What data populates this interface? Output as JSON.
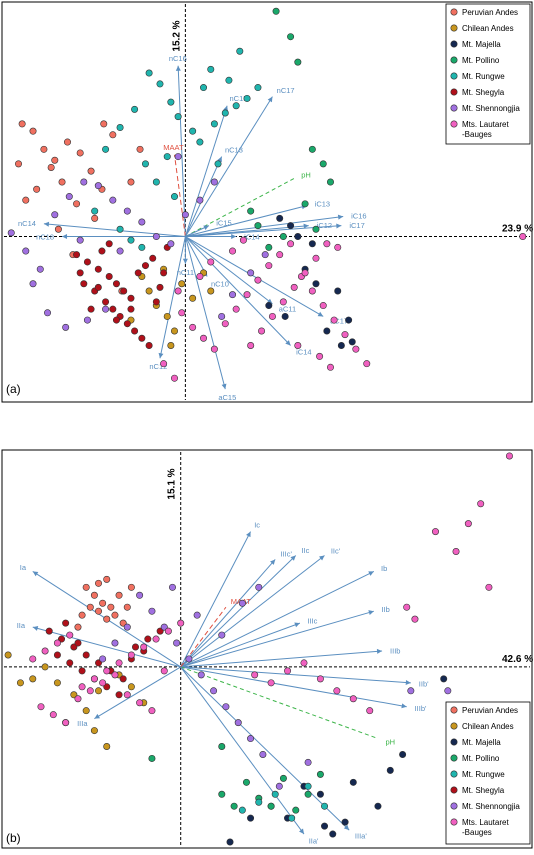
{
  "legend": [
    {
      "name": "Peruvian Andes",
      "color": "#f07060"
    },
    {
      "name": "Chilean Andes",
      "color": "#c8961e"
    },
    {
      "name": "Mt. Majella",
      "color": "#152850"
    },
    {
      "name": "Mt. Pollino",
      "color": "#1aa86a"
    },
    {
      "name": "Mt. Rungwe",
      "color": "#20b5ae"
    },
    {
      "name": "Mt. Shegyla",
      "color": "#b0101a"
    },
    {
      "name": "Mt. Shennongjia",
      "color": "#a070e0"
    },
    {
      "name": "Mts. Lautaret -Bauges",
      "color": "#f060c0"
    }
  ],
  "colors": {
    "arrow": "#5b8fc0",
    "maat": "#e05040",
    "ph": "#3db54a",
    "axis": "#000000"
  },
  "chart_data": [
    {
      "type": "scatter",
      "panel_label": "(a)",
      "x_axis_label": "23.9 %",
      "y_axis_label": "15.2 %",
      "xlim": [
        -100,
        190
      ],
      "ylim": [
        -90,
        128
      ],
      "vectors": [
        {
          "label": "nC16",
          "x": -4,
          "y": 94,
          "style": "arrow"
        },
        {
          "label": "MAAT",
          "x": -6,
          "y": 45,
          "style": "dashed-red"
        },
        {
          "label": "nC15",
          "x": 23,
          "y": 72,
          "style": "arrow"
        },
        {
          "label": "nC17",
          "x": 48,
          "y": 77,
          "style": "arrow"
        },
        {
          "label": "nC13",
          "x": 20,
          "y": 44,
          "style": "arrow"
        },
        {
          "label": "pH",
          "x": 60,
          "y": 32,
          "style": "dashed-green"
        },
        {
          "label": "iC13",
          "x": 67,
          "y": 17,
          "style": "arrow"
        },
        {
          "label": "iC16",
          "x": 87,
          "y": 11,
          "style": "arrow"
        },
        {
          "label": "iC17",
          "x": 86,
          "y": 6,
          "style": "arrow"
        },
        {
          "label": "iC12",
          "x": 68,
          "y": 6,
          "style": "arrow"
        },
        {
          "label": "iC15",
          "x": 13,
          "y": 6,
          "style": "arrow"
        },
        {
          "label": "iC14",
          "x": 28,
          "y": 0,
          "style": "arrow"
        },
        {
          "label": "nC14",
          "x": -78,
          "y": 7,
          "style": "arrow"
        },
        {
          "label": "nC18",
          "x": -68,
          "y": 0,
          "style": "arrow"
        },
        {
          "label": "nC11",
          "x": 0,
          "y": -15,
          "style": "arrow"
        },
        {
          "label": "nC10",
          "x": 12,
          "y": -22,
          "style": "arrow"
        },
        {
          "label": "aC11",
          "x": 48,
          "y": -37,
          "style": "arrow"
        },
        {
          "label": "aC17",
          "x": 76,
          "y": -44,
          "style": "arrow"
        },
        {
          "label": "iC14",
          "x": 58,
          "y": -60,
          "style": "arrow"
        },
        {
          "label": "nC12",
          "x": -14,
          "y": -67,
          "style": "arrow"
        },
        {
          "label": "aC15",
          "x": 22,
          "y": -84,
          "style": "arrow"
        }
      ],
      "series": [
        {
          "name": "Peruvian Andes",
          "x": [
            -90,
            -84,
            -78,
            -74,
            -68,
            -60,
            -72,
            -82,
            -88,
            -65,
            -58,
            -52,
            -46,
            -40,
            -92,
            -70,
            -45,
            -50,
            -62,
            -35,
            -25,
            -30
          ],
          "y": [
            62,
            58,
            48,
            38,
            30,
            18,
            42,
            26,
            20,
            52,
            46,
            36,
            26,
            56,
            40,
            4,
            62,
            10,
            -10,
            -30,
            48,
            30
          ]
        },
        {
          "name": "Chilean Andes",
          "x": [
            -20,
            -16,
            -10,
            -6,
            -2,
            4,
            -30,
            -24,
            -12,
            10,
            14,
            -8
          ],
          "y": [
            -30,
            -38,
            -44,
            -52,
            -26,
            -34,
            -46,
            -22,
            -18,
            -20,
            -30,
            -60
          ]
        },
        {
          "name": "Mt. Majella",
          "x": [
            52,
            58,
            62,
            70,
            66,
            72,
            90,
            92,
            86,
            78,
            46,
            84,
            55
          ],
          "y": [
            10,
            6,
            0,
            -4,
            -18,
            -26,
            -46,
            -58,
            -60,
            -52,
            -38,
            -30,
            -44
          ]
        },
        {
          "name": "Mt. Pollino",
          "x": [
            50,
            58,
            62,
            70,
            76,
            80,
            66,
            72,
            54,
            46,
            40,
            36
          ],
          "y": [
            124,
            110,
            96,
            48,
            40,
            30,
            18,
            4,
            0,
            -6,
            6,
            14
          ]
        },
        {
          "name": "Mt. Rungwe",
          "x": [
            -20,
            -14,
            -8,
            -4,
            4,
            8,
            16,
            22,
            28,
            34,
            40,
            -28,
            -36,
            -44,
            -22,
            -16,
            -10,
            -6,
            -30,
            -36,
            10,
            14,
            24,
            30,
            18,
            -24,
            -50
          ],
          "y": [
            90,
            84,
            74,
            66,
            58,
            52,
            62,
            68,
            72,
            76,
            82,
            70,
            60,
            48,
            40,
            30,
            44,
            22,
            -2,
            4,
            82,
            92,
            86,
            102,
            40,
            -6,
            14
          ]
        },
        {
          "name": "Mt. Shegyla",
          "x": [
            -60,
            -54,
            -48,
            -42,
            -38,
            -34,
            -30,
            -26,
            -22,
            -18,
            -56,
            -50,
            -44,
            -40,
            -36,
            -32,
            -28,
            -24,
            -20,
            -16,
            -14,
            -12,
            -10,
            -52,
            -46,
            -42,
            -38,
            -58,
            -48,
            -30
          ],
          "y": [
            -10,
            -14,
            -18,
            -22,
            -26,
            -30,
            -34,
            -20,
            -16,
            -12,
            -26,
            -30,
            -36,
            -40,
            -44,
            -48,
            -52,
            -56,
            -60,
            -36,
            -28,
            -20,
            -6,
            -40,
            -8,
            -4,
            -46,
            -20,
            -28,
            -40
          ]
        },
        {
          "name": "Mt. Shennongjia",
          "x": [
            -96,
            -88,
            -80,
            -72,
            -64,
            -56,
            -48,
            -40,
            -32,
            -24,
            -16,
            -8,
            0,
            8,
            16,
            -76,
            -66,
            -54,
            -44,
            20,
            26,
            36,
            44,
            -84,
            -58,
            -36,
            -4
          ],
          "y": [
            2,
            -8,
            -18,
            12,
            22,
            30,
            28,
            20,
            14,
            8,
            0,
            -4,
            12,
            20,
            30,
            -42,
            -50,
            -46,
            -40,
            -44,
            -32,
            -20,
            -10,
            -26,
            -2,
            -8,
            44
          ]
        },
        {
          "name": "Mts. Lautaret -Bauges",
          "x": [
            -2,
            4,
            10,
            16,
            22,
            28,
            34,
            40,
            46,
            52,
            58,
            64,
            70,
            76,
            82,
            88,
            94,
            100,
            -12,
            -6,
            186,
            36,
            42,
            48,
            54,
            60,
            66,
            72,
            78,
            84,
            -4,
            8,
            14,
            26,
            32,
            62,
            74,
            80
          ],
          "y": [
            -42,
            -50,
            -56,
            -62,
            -48,
            -40,
            -32,
            -24,
            -16,
            -10,
            -4,
            -22,
            -30,
            -38,
            -46,
            -54,
            -62,
            -70,
            -70,
            -78,
            0,
            -60,
            -52,
            -44,
            -36,
            -28,
            -20,
            -12,
            -4,
            -6,
            -30,
            -22,
            -14,
            -8,
            -2,
            -60,
            -66,
            -72
          ]
        }
      ]
    },
    {
      "type": "scatter",
      "panel_label": "(b)",
      "x_axis_label": "42.6 %",
      "y_axis_label": "15.1 %",
      "xlim": [
        -86,
        170
      ],
      "ylim": [
        -90,
        108
      ],
      "vectors": [
        {
          "label": "Ia",
          "x": -72,
          "y": 48,
          "style": "arrow"
        },
        {
          "label": "IIa",
          "x": -72,
          "y": 20,
          "style": "arrow"
        },
        {
          "label": "IIIa",
          "x": -42,
          "y": -26,
          "style": "arrow"
        },
        {
          "label": "Ic",
          "x": 34,
          "y": 68,
          "style": "arrow"
        },
        {
          "label": "IIIc'",
          "x": 46,
          "y": 54,
          "style": "arrow"
        },
        {
          "label": "IIc",
          "x": 56,
          "y": 56,
          "style": "arrow"
        },
        {
          "label": "IIc'",
          "x": 70,
          "y": 56,
          "style": "arrow"
        },
        {
          "label": "Ib",
          "x": 94,
          "y": 48,
          "style": "arrow"
        },
        {
          "label": "IIIc",
          "x": 58,
          "y": 22,
          "style": "arrow"
        },
        {
          "label": "IIb",
          "x": 94,
          "y": 28,
          "style": "arrow"
        },
        {
          "label": "IIIb",
          "x": 98,
          "y": 8,
          "style": "arrow"
        },
        {
          "label": "IIb'",
          "x": 112,
          "y": -8,
          "style": "arrow"
        },
        {
          "label": "IIIb'",
          "x": 110,
          "y": -20,
          "style": "arrow"
        },
        {
          "label": "MAAT",
          "x": 22,
          "y": 30,
          "style": "dashed-red"
        },
        {
          "label": "pH",
          "x": 96,
          "y": -36,
          "style": "dashed-green"
        },
        {
          "label": "IIIa'",
          "x": 82,
          "y": -82,
          "style": "arrow"
        },
        {
          "label": "IIa'",
          "x": 60,
          "y": -84,
          "style": "arrow"
        }
      ],
      "series": [
        {
          "name": "Peruvian Andes",
          "x": [
            -46,
            -42,
            -38,
            -34,
            -30,
            -44,
            -40,
            -36,
            -32,
            -28,
            -48,
            -50,
            -26,
            -24,
            -40,
            -36
          ],
          "y": [
            40,
            36,
            32,
            30,
            36,
            30,
            28,
            24,
            26,
            22,
            26,
            20,
            30,
            40,
            42,
            44
          ]
        },
        {
          "name": "Chilean Andes",
          "x": [
            -84,
            -78,
            -72,
            -66,
            -60,
            -52,
            -46,
            -40,
            -30,
            -24,
            -18,
            -56,
            -36,
            -42
          ],
          "y": [
            6,
            -8,
            -6,
            0,
            -8,
            -14,
            -22,
            -12,
            -4,
            -10,
            -18,
            -28,
            -40,
            -32
          ]
        },
        {
          "name": "Mt. Majella",
          "x": [
            24,
            34,
            44,
            52,
            60,
            68,
            74,
            80,
            84,
            96,
            102,
            108,
            128,
            70
          ],
          "y": [
            -88,
            -76,
            -70,
            -76,
            -60,
            -64,
            -84,
            -78,
            -58,
            -70,
            -52,
            -44,
            -6,
            -80
          ]
        },
        {
          "name": "Mt. Pollino",
          "x": [
            -14,
            20,
            26,
            32,
            38,
            44,
            50,
            56,
            62,
            68,
            20
          ],
          "y": [
            -46,
            -64,
            -70,
            -58,
            -66,
            -70,
            -56,
            -72,
            -64,
            -54,
            -40
          ]
        },
        {
          "name": "Mt. Rungwe",
          "x": [
            30,
            38,
            46,
            54,
            62,
            70
          ],
          "y": [
            -72,
            -68,
            -64,
            -76,
            -60,
            -70
          ]
        },
        {
          "name": "Mt. Shegyla",
          "x": [
            -64,
            -58,
            -52,
            -46,
            -40,
            -34,
            -28,
            -22,
            -16,
            -10,
            -60,
            -54,
            -48,
            -42,
            -36,
            -30,
            -24,
            -18,
            -56,
            -50
          ],
          "y": [
            18,
            14,
            10,
            6,
            2,
            -2,
            -6,
            10,
            14,
            18,
            6,
            2,
            -2,
            -6,
            -10,
            -14,
            4,
            8,
            22,
            12
          ]
        },
        {
          "name": "Mt. Shennongjia",
          "x": [
            -20,
            -14,
            -8,
            -2,
            4,
            10,
            16,
            22,
            28,
            34,
            40,
            -26,
            -32,
            -38,
            -4,
            8,
            20,
            30,
            38,
            130,
            112,
            48,
            62
          ],
          "y": [
            36,
            28,
            20,
            12,
            4,
            -4,
            -12,
            -20,
            -28,
            -36,
            -44,
            20,
            12,
            4,
            40,
            26,
            16,
            32,
            40,
            -12,
            -12,
            -60,
            -48
          ]
        },
        {
          "name": "Mts. Lautaret -Bauges",
          "x": [
            -72,
            -66,
            -60,
            -54,
            -48,
            -42,
            -36,
            -30,
            -24,
            -18,
            -12,
            -6,
            0,
            -68,
            -62,
            -56,
            -50,
            -44,
            -38,
            -32,
            -26,
            -20,
            -14,
            -8,
            160,
            146,
            140,
            124,
            134,
            150,
            110,
            114,
            36,
            44,
            52,
            60,
            68,
            76,
            84,
            92
          ],
          "y": [
            4,
            8,
            12,
            16,
            -10,
            -6,
            -2,
            2,
            6,
            10,
            14,
            18,
            22,
            -20,
            -24,
            -28,
            -16,
            -12,
            -8,
            -4,
            -14,
            -18,
            -22,
            -2,
            106,
            82,
            72,
            68,
            58,
            40,
            30,
            24,
            -4,
            -8,
            -2,
            2,
            -6,
            -12,
            -16,
            -22
          ]
        }
      ]
    }
  ]
}
